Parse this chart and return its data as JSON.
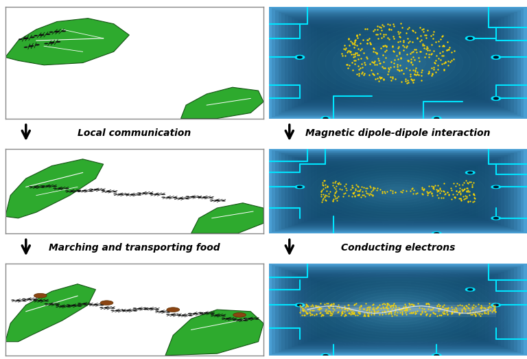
{
  "labels": {
    "label1": "Local communication",
    "label2": "Magnetic dipole-dipole interaction",
    "label3": "Marching and transporting food",
    "label4": "Conducting electrons"
  },
  "colors": {
    "bg_circuit": "#0a3a5c",
    "circuit_line": "#00e5ff",
    "yellow_particle": "#ffd700",
    "leaf_dark": "#1a7a1a",
    "leaf_mid": "#2eaa2e",
    "leaf_light": "#4ecb4e",
    "white_bg": "#ffffff",
    "gray_border": "#888888",
    "glow_center": "#4a9fd4",
    "arrow_color": "#000000",
    "text_color": "#000000"
  },
  "layout": {
    "figw": 7.68,
    "figh": 5.23,
    "dpi": 100
  }
}
